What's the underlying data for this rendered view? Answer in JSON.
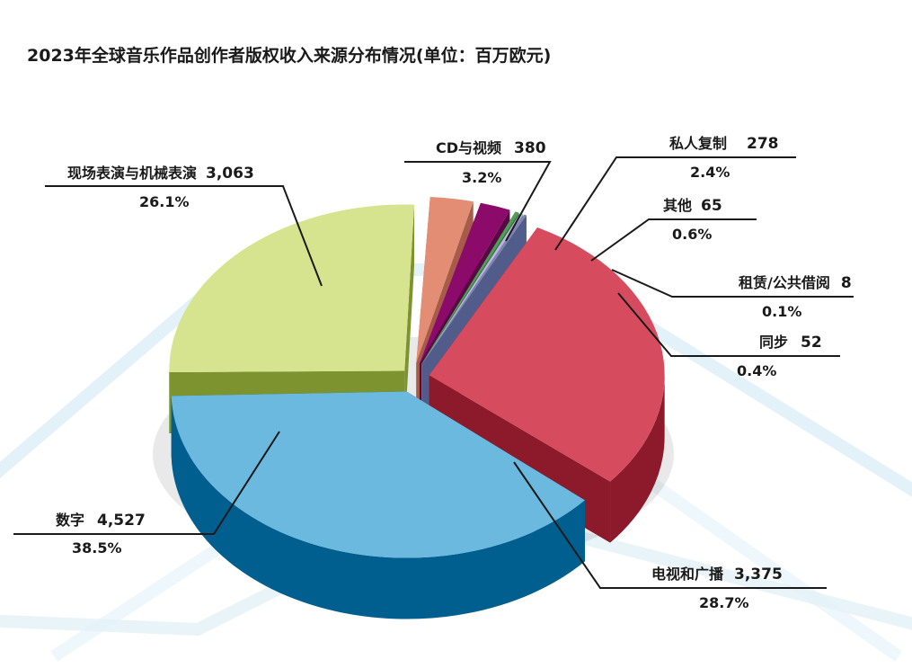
{
  "chart_data": {
    "type": "pie",
    "title": "2023年全球音乐作品创作者版权收入来源分布情况(单位：百万欧元)",
    "slices": [
      {
        "label": "电视和广播",
        "value": "3,375",
        "percent": "28.7%",
        "v": 3375,
        "color": "#d64b5e",
        "side": "#8c1a2a"
      },
      {
        "label": "同步",
        "value": "52",
        "percent": "0.4%",
        "v": 52,
        "color": "#8089b0",
        "side": "#525c8a"
      },
      {
        "label": "租赁/公共借阅",
        "value": "8",
        "percent": "0.1%",
        "v": 8,
        "color": "#bcb5e0",
        "side": "#8c84bc"
      },
      {
        "label": "其他",
        "value": "65",
        "percent": "0.6%",
        "v": 65,
        "color": "#4e9d55",
        "side": "#2f7035"
      },
      {
        "label": "私人复制",
        "value": "278",
        "percent": "2.4%",
        "v": 278,
        "color": "#8c0a6a",
        "side": "#5a0545"
      },
      {
        "label": "CD与视频",
        "value": "380",
        "percent": "3.2%",
        "v": 380,
        "color": "#e37a68",
        "side": "#a64c3c"
      },
      {
        "label": "现场表演与机械表演",
        "value": "3,063",
        "percent": "26.1%",
        "v": 3063,
        "color": "#e25aab",
        "side": "#a72a78"
      },
      {
        "label": "数字",
        "value": "4,527",
        "percent": "38.5%",
        "v": 4527,
        "color": "#d6e391",
        "side": "#7f9430"
      }
    ]
  }
}
